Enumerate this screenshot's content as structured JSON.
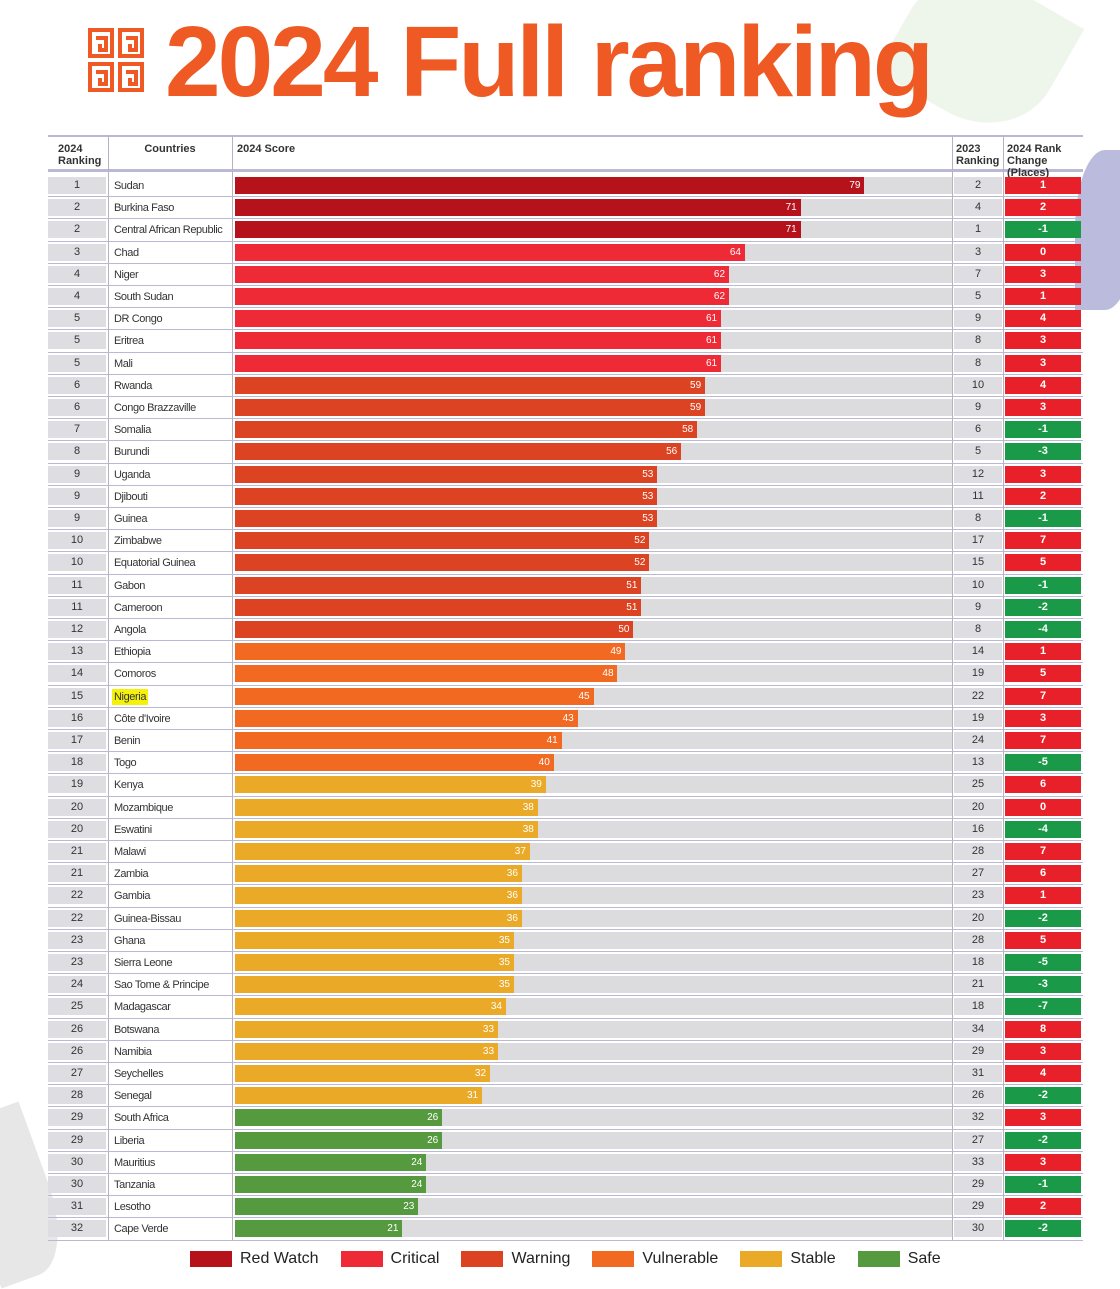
{
  "title": "2024 Full ranking",
  "colors": {
    "title": "#ef5a24",
    "change_up": "#e8202a",
    "change_down": "#1a9a48",
    "Red Watch": "#b5121b",
    "Critical": "#ee2a36",
    "Warning": "#dc4322",
    "Vulnerable": "#f26a22",
    "Stable": "#eaaa27",
    "Safe": "#559a3f",
    "highlight": "#f4f20a"
  },
  "headers": {
    "rank": "2024 Ranking",
    "country": "Countries",
    "score": "2024 Score",
    "rank2023": "2023 Ranking",
    "change": "2024 Rank Change (Places)"
  },
  "legend": [
    "Red Watch",
    "Critical",
    "Warning",
    "Vulnerable",
    "Stable",
    "Safe"
  ],
  "chart_data": {
    "type": "bar",
    "orientation": "horizontal",
    "xlim": [
      0,
      90
    ],
    "highlighted": "Nigeria",
    "columns": [
      "rank_2024",
      "country",
      "score_2024",
      "rank_2023",
      "rank_change",
      "category"
    ],
    "rows": [
      [
        1,
        "Sudan",
        79,
        2,
        "1",
        "Red Watch"
      ],
      [
        2,
        "Burkina Faso",
        71,
        4,
        "2",
        "Red Watch"
      ],
      [
        2,
        "Central African Republic",
        71,
        1,
        "-1",
        "Red Watch"
      ],
      [
        3,
        "Chad",
        64,
        3,
        "0",
        "Critical"
      ],
      [
        4,
        "Niger",
        62,
        7,
        "3",
        "Critical"
      ],
      [
        4,
        "South Sudan",
        62,
        5,
        "1",
        "Critical"
      ],
      [
        5,
        "DR Congo",
        61,
        9,
        "4",
        "Critical"
      ],
      [
        5,
        "Eritrea",
        61,
        8,
        "3",
        "Critical"
      ],
      [
        5,
        "Mali",
        61,
        8,
        "3",
        "Critical"
      ],
      [
        6,
        "Rwanda",
        59,
        10,
        "4",
        "Warning"
      ],
      [
        6,
        "Congo Brazzaville",
        59,
        9,
        "3",
        "Warning"
      ],
      [
        7,
        "Somalia",
        58,
        6,
        "-1",
        "Warning"
      ],
      [
        8,
        "Burundi",
        56,
        5,
        "-3",
        "Warning"
      ],
      [
        9,
        "Uganda",
        53,
        12,
        "3",
        "Warning"
      ],
      [
        9,
        "Djibouti",
        53,
        11,
        "2",
        "Warning"
      ],
      [
        9,
        "Guinea",
        53,
        8,
        "-1",
        "Warning"
      ],
      [
        10,
        "Zimbabwe",
        52,
        17,
        "7",
        "Warning"
      ],
      [
        10,
        "Equatorial Guinea",
        52,
        15,
        "5",
        "Warning"
      ],
      [
        11,
        "Gabon",
        51,
        10,
        "-1",
        "Warning"
      ],
      [
        11,
        "Cameroon",
        51,
        9,
        "-2",
        "Warning"
      ],
      [
        12,
        "Angola",
        50,
        8,
        "-4",
        "Warning"
      ],
      [
        13,
        "Ethiopia",
        49,
        14,
        "1",
        "Vulnerable"
      ],
      [
        14,
        "Comoros",
        48,
        19,
        "5",
        "Vulnerable"
      ],
      [
        15,
        "Nigeria",
        45,
        22,
        "7",
        "Vulnerable"
      ],
      [
        16,
        "Côte d'Ivoire",
        43,
        19,
        "3",
        "Vulnerable"
      ],
      [
        17,
        "Benin",
        41,
        24,
        "7",
        "Vulnerable"
      ],
      [
        18,
        "Togo",
        40,
        13,
        "-5",
        "Vulnerable"
      ],
      [
        19,
        "Kenya",
        39,
        25,
        "6",
        "Stable"
      ],
      [
        20,
        "Mozambique",
        38,
        20,
        "0",
        "Stable"
      ],
      [
        20,
        "Eswatini",
        38,
        16,
        "-4",
        "Stable"
      ],
      [
        21,
        "Malawi",
        37,
        28,
        "7",
        "Stable"
      ],
      [
        21,
        "Zambia",
        36,
        27,
        "6",
        "Stable"
      ],
      [
        22,
        "Gambia",
        36,
        23,
        "1",
        "Stable"
      ],
      [
        22,
        "Guinea-Bissau",
        36,
        20,
        "-2",
        "Stable"
      ],
      [
        23,
        "Ghana",
        35,
        28,
        "5",
        "Stable"
      ],
      [
        23,
        "Sierra Leone",
        35,
        18,
        "-5",
        "Stable"
      ],
      [
        24,
        "Sao Tome & Principe",
        35,
        21,
        "-3",
        "Stable"
      ],
      [
        25,
        "Madagascar",
        34,
        18,
        "-7",
        "Stable"
      ],
      [
        26,
        "Botswana",
        33,
        34,
        "8",
        "Stable"
      ],
      [
        26,
        "Namibia",
        33,
        29,
        "3",
        "Stable"
      ],
      [
        27,
        "Seychelles",
        32,
        31,
        "4",
        "Stable"
      ],
      [
        28,
        "Senegal",
        31,
        26,
        "-2",
        "Stable"
      ],
      [
        29,
        "South Africa",
        26,
        32,
        "3",
        "Safe"
      ],
      [
        29,
        "Liberia",
        26,
        27,
        "-2",
        "Safe"
      ],
      [
        30,
        "Mauritius",
        24,
        33,
        "3",
        "Safe"
      ],
      [
        30,
        "Tanzania",
        24,
        29,
        "-1",
        "Safe"
      ],
      [
        31,
        "Lesotho",
        23,
        29,
        "2",
        "Safe"
      ],
      [
        32,
        "Cape Verde",
        21,
        30,
        "-2",
        "Safe"
      ]
    ]
  }
}
